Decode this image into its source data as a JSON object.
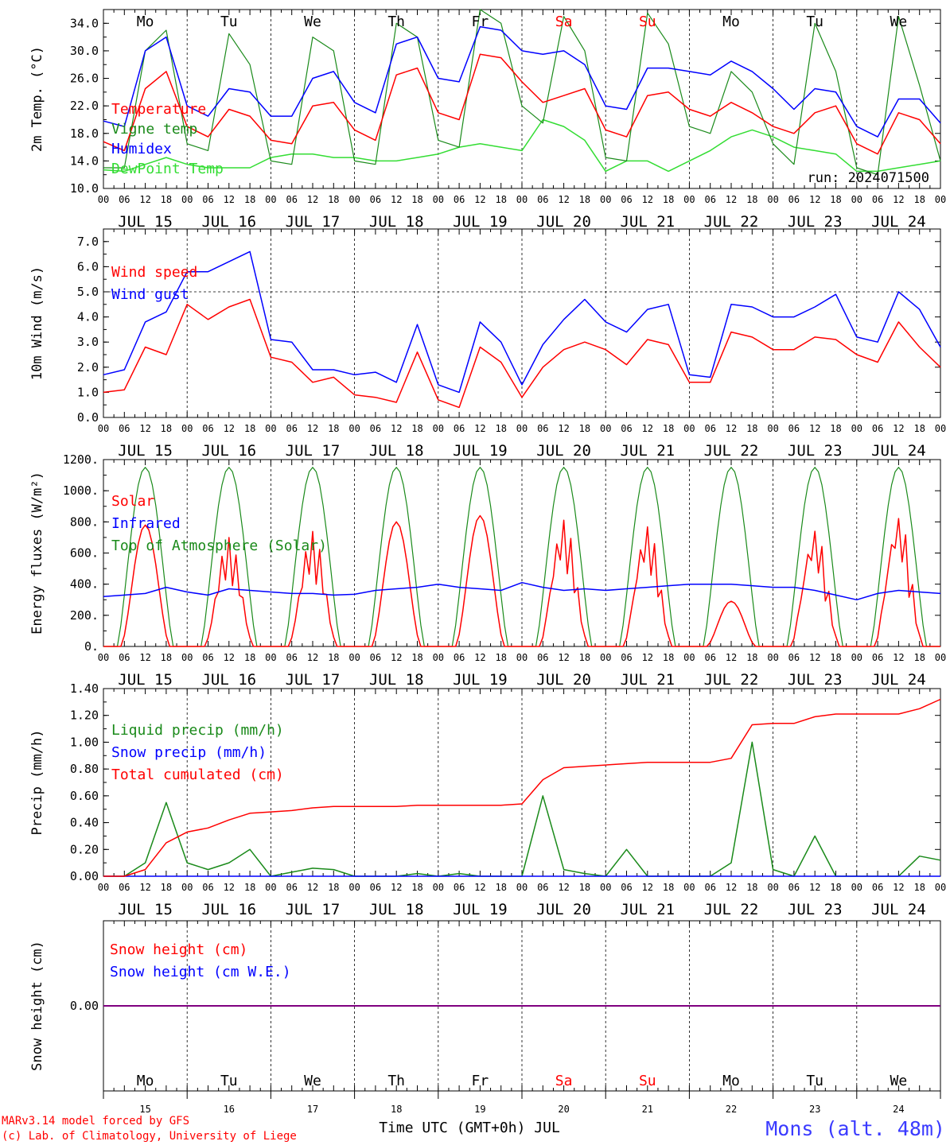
{
  "x_ticks": [
    "00",
    "06",
    "12",
    "18"
  ],
  "dates": [
    "JUL 15",
    "JUL 16",
    "JUL 17",
    "JUL 18",
    "JUL 19",
    "JUL 20",
    "JUL 21",
    "JUL 22",
    "JUL 23",
    "JUL 24"
  ],
  "days_of_week": [
    {
      "label": "Mo",
      "color": "#000000"
    },
    {
      "label": "Tu",
      "color": "#000000"
    },
    {
      "label": "We",
      "color": "#000000"
    },
    {
      "label": "Th",
      "color": "#000000"
    },
    {
      "label": "Fr",
      "color": "#000000"
    },
    {
      "label": "Sa",
      "color": "#ff0000"
    },
    {
      "label": "Su",
      "color": "#ff0000"
    },
    {
      "label": "Mo",
      "color": "#000000"
    },
    {
      "label": "Tu",
      "color": "#000000"
    },
    {
      "label": "We",
      "color": "#000000"
    }
  ],
  "day_numbers": [
    "15",
    "16",
    "17",
    "18",
    "19",
    "20",
    "21",
    "22",
    "23",
    "24"
  ],
  "run_label": "run: 2024071500",
  "footer": {
    "line1": "MARv3.14 model forced by GFS",
    "line2": "(c) Lab. of Climatology, University of Liege",
    "x_title": "Time UTC (GMT+0h) JUL",
    "station": "Mons (alt. 48m)"
  },
  "colors": {
    "red": "#ff0000",
    "green": "#1a8a1a",
    "blue": "#0000ff",
    "lightgreen": "#33dd33",
    "purple": "#800080"
  },
  "chart_data": [
    {
      "type": "line",
      "ylabel": "2m Temp. (°C)",
      "ylim": [
        10,
        36
      ],
      "y_ticks": [
        "10.0",
        "14.0",
        "18.0",
        "22.0",
        "26.0",
        "30.0",
        "34.0"
      ],
      "x_hours": [
        0,
        6,
        12,
        18,
        24,
        30,
        36,
        42,
        48,
        54,
        60,
        66,
        72,
        78,
        84,
        90,
        96,
        102,
        108,
        114,
        120,
        126,
        132,
        138,
        144,
        150,
        156,
        162,
        168,
        174,
        180,
        186,
        192,
        198,
        204,
        210,
        216,
        222,
        228,
        234,
        240
      ],
      "series": [
        {
          "name": "Temperature",
          "color": "red",
          "values": [
            16.8,
            15.5,
            24.5,
            27.0,
            19.0,
            17.5,
            21.5,
            20.5,
            17.0,
            16.5,
            22.0,
            22.5,
            18.5,
            17.0,
            26.5,
            27.5,
            21.0,
            20.0,
            29.5,
            29.0,
            25.5,
            22.5,
            23.5,
            24.5,
            18.5,
            17.5,
            23.5,
            24.0,
            21.5,
            20.5,
            22.5,
            21.0,
            19.0,
            18.0,
            21.0,
            22.0,
            16.5,
            15.0,
            21.0,
            20.0,
            16.5
          ]
        },
        {
          "name": "Vigne temp",
          "color": "green",
          "values": [
            13.0,
            13.0,
            30.0,
            33.0,
            16.5,
            15.5,
            32.5,
            28.0,
            14.0,
            13.5,
            32.0,
            30.0,
            14.0,
            13.5,
            34.0,
            32.0,
            17.0,
            16.0,
            36.0,
            34.0,
            22.0,
            19.5,
            35.0,
            30.0,
            14.5,
            14.0,
            35.5,
            31.0,
            19.0,
            18.0,
            27.0,
            24.0,
            16.5,
            13.5,
            34.0,
            27.0,
            13.0,
            12.0,
            35.0,
            25.0,
            14.0
          ]
        },
        {
          "name": "Humidex",
          "color": "blue",
          "values": [
            19.8,
            19.0,
            30.0,
            32.0,
            22.0,
            20.5,
            24.5,
            24.0,
            20.5,
            20.5,
            26.0,
            27.0,
            22.5,
            21.0,
            31.0,
            32.0,
            26.0,
            25.5,
            33.5,
            33.0,
            30.0,
            29.5,
            30.0,
            28.0,
            22.0,
            21.5,
            27.5,
            27.5,
            27.0,
            26.5,
            28.5,
            27.0,
            24.5,
            21.5,
            24.5,
            24.0,
            19.0,
            17.5,
            23.0,
            23.0,
            19.5
          ]
        },
        {
          "name": "DewPoint Temp",
          "color": "lightgreen",
          "values": [
            12.7,
            12.5,
            13.5,
            14.5,
            13.5,
            13.0,
            13.0,
            13.0,
            14.5,
            15.0,
            15.0,
            14.5,
            14.5,
            14.0,
            14.0,
            14.5,
            15.0,
            16.0,
            16.5,
            16.0,
            15.5,
            20.0,
            19.0,
            17.0,
            12.5,
            14.0,
            14.0,
            12.5,
            14.0,
            15.5,
            17.5,
            18.5,
            17.5,
            16.0,
            15.5,
            15.0,
            12.5,
            12.5,
            13.0,
            13.5,
            14.0
          ]
        }
      ],
      "legend": [
        "Temperature",
        "Vigne temp",
        "Humidex",
        "DewPoint Temp"
      ],
      "grid_extra": null
    },
    {
      "type": "line",
      "ylabel": "10m Wind (m/s)",
      "ylim": [
        0,
        7.5
      ],
      "y_ticks": [
        "0.0",
        "1.0",
        "2.0",
        "3.0",
        "4.0",
        "5.0",
        "6.0",
        "7.0"
      ],
      "x_hours": [
        0,
        6,
        12,
        18,
        24,
        30,
        36,
        42,
        48,
        54,
        60,
        66,
        72,
        78,
        84,
        90,
        96,
        102,
        108,
        114,
        120,
        126,
        132,
        138,
        144,
        150,
        156,
        162,
        168,
        174,
        180,
        186,
        192,
        198,
        204,
        210,
        216,
        222,
        228,
        234,
        240
      ],
      "series": [
        {
          "name": "Wind speed",
          "color": "red",
          "values": [
            1.0,
            1.1,
            2.8,
            2.5,
            4.5,
            3.9,
            4.4,
            4.7,
            2.4,
            2.2,
            1.4,
            1.6,
            0.9,
            0.8,
            0.6,
            2.6,
            0.7,
            0.4,
            2.8,
            2.2,
            0.8,
            2.0,
            2.7,
            3.0,
            2.7,
            2.1,
            3.1,
            2.9,
            1.4,
            1.4,
            3.4,
            3.2,
            2.7,
            2.7,
            3.2,
            3.1,
            2.5,
            2.2,
            3.8,
            2.8,
            2.0
          ]
        },
        {
          "name": "Wind gust",
          "color": "blue",
          "values": [
            1.7,
            1.9,
            3.8,
            4.2,
            5.8,
            5.8,
            6.2,
            6.6,
            3.1,
            3.0,
            1.9,
            1.9,
            1.7,
            1.8,
            1.4,
            3.7,
            1.3,
            1.0,
            3.8,
            3.0,
            1.3,
            2.9,
            3.9,
            4.7,
            3.8,
            3.4,
            4.3,
            4.5,
            1.7,
            1.6,
            4.5,
            4.4,
            4.0,
            4.0,
            4.4,
            4.9,
            3.2,
            3.0,
            5.0,
            4.3,
            2.8
          ]
        }
      ],
      "legend": [
        "Wind speed",
        "Wind gust"
      ],
      "grid_extra": 5.0
    },
    {
      "type": "line",
      "ylabel": "Energy fluxes (W/m²)",
      "ylim": [
        0,
        1200
      ],
      "y_ticks": [
        "0.",
        "200.",
        "400.",
        "600.",
        "800.",
        "1000.",
        "1200."
      ],
      "series": [
        {
          "name": "Solar",
          "color": "red",
          "peaks": [
            780,
            700,
            740,
            800,
            840,
            820,
            780,
            290,
            760,
            850
          ]
        },
        {
          "name": "Infrared",
          "color": "blue",
          "values": [
            320,
            330,
            340,
            380,
            350,
            330,
            370,
            360,
            350,
            340,
            340,
            330,
            335,
            360,
            370,
            380,
            400,
            380,
            370,
            360,
            410,
            380,
            360,
            370,
            360,
            370,
            380,
            390,
            400,
            400,
            400,
            390,
            380,
            380,
            360,
            330,
            300,
            340,
            360,
            350,
            340
          ]
        },
        {
          "name": "Top of Atmosphere (Solar)",
          "color": "green",
          "peak": 1150
        }
      ],
      "legend": [
        "Solar",
        "Infrared",
        "Top of Atmosphere (Solar)"
      ]
    },
    {
      "type": "line",
      "ylabel": "Precip (mm/h)",
      "ylim": [
        0,
        1.4
      ],
      "y_ticks": [
        "0.00",
        "0.20",
        "0.40",
        "0.60",
        "0.80",
        "1.00",
        "1.20",
        "1.40"
      ],
      "x_hours": [
        0,
        6,
        12,
        18,
        24,
        30,
        36,
        42,
        48,
        54,
        60,
        66,
        72,
        78,
        84,
        90,
        96,
        102,
        108,
        114,
        120,
        126,
        132,
        138,
        144,
        150,
        156,
        162,
        168,
        174,
        180,
        186,
        192,
        198,
        204,
        210,
        216,
        222,
        228,
        234,
        240
      ],
      "series": [
        {
          "name": "Liquid precip (mm/h)",
          "color": "green",
          "values": [
            0,
            0,
            0.1,
            0.55,
            0.1,
            0.05,
            0.1,
            0.2,
            0,
            0.03,
            0.06,
            0.05,
            0,
            0,
            0,
            0.02,
            0,
            0.02,
            0,
            0,
            0,
            0.6,
            0.05,
            0.02,
            0,
            0.2,
            0,
            0,
            0,
            0,
            0.1,
            1.0,
            0.05,
            0,
            0.3,
            0,
            0,
            0,
            0,
            0.15,
            0.12
          ]
        },
        {
          "name": "Snow precip (mm/h)",
          "color": "blue",
          "values": [
            0,
            0,
            0,
            0,
            0,
            0,
            0,
            0,
            0,
            0,
            0,
            0,
            0,
            0,
            0,
            0,
            0,
            0,
            0,
            0,
            0,
            0,
            0,
            0,
            0,
            0,
            0,
            0,
            0,
            0,
            0,
            0,
            0,
            0,
            0,
            0,
            0,
            0,
            0,
            0,
            0
          ]
        },
        {
          "name": "Total cumulated (cm)",
          "color": "red",
          "values": [
            0,
            0,
            0.05,
            0.25,
            0.33,
            0.36,
            0.42,
            0.47,
            0.48,
            0.49,
            0.51,
            0.52,
            0.52,
            0.52,
            0.52,
            0.53,
            0.53,
            0.53,
            0.53,
            0.53,
            0.54,
            0.72,
            0.81,
            0.82,
            0.83,
            0.84,
            0.85,
            0.85,
            0.85,
            0.85,
            0.88,
            1.13,
            1.14,
            1.14,
            1.19,
            1.21,
            1.21,
            1.21,
            1.21,
            1.25,
            1.32
          ]
        }
      ],
      "legend": [
        "Liquid precip (mm/h)",
        "Snow precip (mm/h)",
        "Total cumulated (cm)"
      ]
    },
    {
      "type": "line",
      "ylabel": "Snow height (cm)",
      "y_ticks": [
        "0.00"
      ],
      "series": [
        {
          "name": "Snow height (cm)",
          "color": "red",
          "values": [
            0,
            0
          ]
        },
        {
          "name": "Snow height (cm W.E.)",
          "color": "blue",
          "values": [
            0,
            0
          ]
        }
      ],
      "legend": [
        "Snow height (cm)",
        "Snow height (cm W.E.)"
      ]
    }
  ]
}
